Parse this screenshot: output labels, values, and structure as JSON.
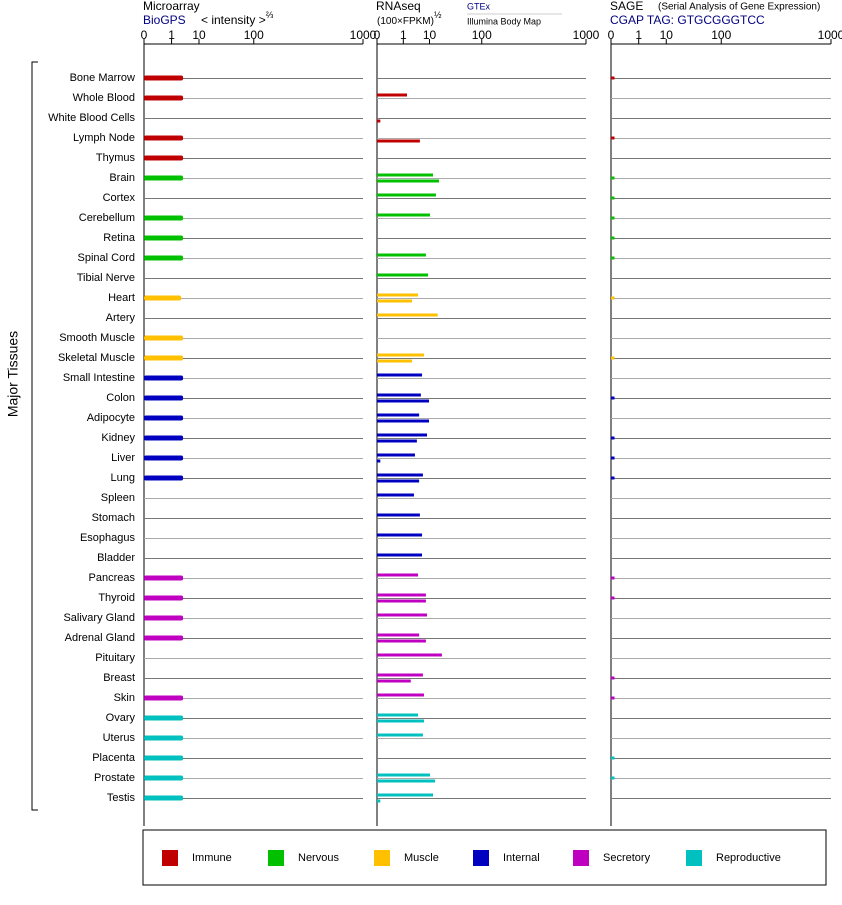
{
  "chart_data": {
    "type": "bar",
    "ylabel": "Major Tissues",
    "xlim": [
      0,
      1000
    ],
    "xticks": [
      0,
      1,
      10,
      100,
      1000
    ],
    "xscale": "power",
    "xscale_exponent": 0.3,
    "panels": [
      {
        "key": "microarray",
        "title": "Microarray",
        "source": "BioGPS",
        "unit": "< intensity >",
        "unit_exponent": "⅔"
      },
      {
        "key": "rnaseq",
        "title": "RNAseq",
        "unit": "(100×FPKM)",
        "unit_exponent": "½",
        "sources": [
          "GTEx",
          "Illumina Body Map"
        ]
      },
      {
        "key": "sage",
        "title": "SAGE",
        "subtitle": "(Serial Analysis of Gene Expression)",
        "source": "CGAP TAG: GTGCGGGTCC"
      }
    ],
    "groups": [
      {
        "name": "Immune",
        "color": "#c00000",
        "tissues": [
          {
            "name": "Bone Marrow",
            "microarray": 3.2,
            "gtex": null,
            "illumina": null,
            "sage": 0.001
          },
          {
            "name": "Whole Blood",
            "microarray": 3.2,
            "gtex": 1.55,
            "illumina": null,
            "sage": null
          },
          {
            "name": "White Blood Cells",
            "microarray": null,
            "gtex": null,
            "illumina": 0.001,
            "sage": null
          },
          {
            "name": "Lymph Node",
            "microarray": 3.2,
            "gtex": null,
            "illumina": 5.1,
            "sage": 0.001
          },
          {
            "name": "Thymus",
            "microarray": 3.2,
            "gtex": null,
            "illumina": null,
            "sage": null
          }
        ]
      },
      {
        "name": "Nervous",
        "color": "#00c000",
        "tissues": [
          {
            "name": "Brain",
            "microarray": 3.2,
            "gtex": 12.4,
            "illumina": 17.4,
            "sage": 0.001
          },
          {
            "name": "Cortex",
            "microarray": null,
            "gtex": 14.7,
            "illumina": null,
            "sage": 0.001
          },
          {
            "name": "Cerebellum",
            "microarray": 3.2,
            "gtex": 10.3,
            "illumina": null,
            "sage": 0.001
          },
          {
            "name": "Retina",
            "microarray": 3.2,
            "gtex": null,
            "illumina": null,
            "sage": 0.001
          },
          {
            "name": "Spinal Cord",
            "microarray": 3.2,
            "gtex": 7.9,
            "illumina": null,
            "sage": 0.001
          },
          {
            "name": "Tibial Nerve",
            "microarray": null,
            "gtex": 9.1,
            "illumina": null,
            "sage": null
          }
        ]
      },
      {
        "name": "Muscle",
        "color": "#ffc000",
        "tissues": [
          {
            "name": "Heart",
            "microarray": 2.7,
            "gtex": 4.4,
            "illumina": 2.6,
            "sage": 0.001
          },
          {
            "name": "Artery",
            "microarray": null,
            "gtex": 16.2,
            "illumina": null,
            "sage": null
          },
          {
            "name": "Smooth Muscle",
            "microarray": 3.2,
            "gtex": null,
            "illumina": null,
            "sage": null
          },
          {
            "name": "Skeletal Muscle",
            "microarray": 3.2,
            "gtex": 6.9,
            "illumina": 2.6,
            "sage": 0.001
          }
        ]
      },
      {
        "name": "Internal",
        "color": "#0000c0",
        "tissues": [
          {
            "name": "Small Intestine",
            "microarray": 3.2,
            "gtex": 6.0,
            "illumina": null,
            "sage": null
          },
          {
            "name": "Colon",
            "microarray": 3.2,
            "gtex": 5.5,
            "illumina": 9.7,
            "sage": 0.001
          },
          {
            "name": "Adipocyte",
            "microarray": 3.2,
            "gtex": 4.8,
            "illumina": 9.7,
            "sage": null
          },
          {
            "name": "Kidney",
            "microarray": 3.2,
            "gtex": 8.5,
            "illumina": 4.0,
            "sage": 0.001
          },
          {
            "name": "Liver",
            "microarray": 3.2,
            "gtex": 3.4,
            "illumina": 0.001,
            "sage": 0.001
          },
          {
            "name": "Lung",
            "microarray": 3.2,
            "gtex": 6.4,
            "illumina": 4.8,
            "sage": 0.001
          },
          {
            "name": "Spleen",
            "microarray": null,
            "gtex": 3.1,
            "illumina": null,
            "sage": null
          },
          {
            "name": "Stomach",
            "microarray": null,
            "gtex": 5.1,
            "illumina": null,
            "sage": null
          },
          {
            "name": "Esophagus",
            "microarray": null,
            "gtex": 6.0,
            "illumina": null,
            "sage": null
          },
          {
            "name": "Bladder",
            "microarray": null,
            "gtex": 6.0,
            "illumina": null,
            "sage": null
          }
        ]
      },
      {
        "name": "Secretory",
        "color": "#c000c0",
        "tissues": [
          {
            "name": "Pancreas",
            "microarray": 3.2,
            "gtex": 4.4,
            "illumina": null,
            "sage": 0.001
          },
          {
            "name": "Thyroid",
            "microarray": 3.2,
            "gtex": 7.9,
            "illumina": 7.9,
            "sage": 0.001
          },
          {
            "name": "Salivary Gland",
            "microarray": 3.2,
            "gtex": 8.5,
            "illumina": null,
            "sage": null
          },
          {
            "name": "Adrenal Gland",
            "microarray": 3.2,
            "gtex": 4.8,
            "illumina": 7.9,
            "sage": null
          },
          {
            "name": "Pituitary",
            "microarray": null,
            "gtex": 20.3,
            "illumina": null,
            "sage": null
          },
          {
            "name": "Breast",
            "microarray": null,
            "gtex": 6.4,
            "illumina": 2.3,
            "sage": 0.001
          },
          {
            "name": "Skin",
            "microarray": 3.2,
            "gtex": 6.9,
            "illumina": null,
            "sage": 0.001
          }
        ]
      },
      {
        "name": "Reproductive",
        "color": "#00c0c0",
        "tissues": [
          {
            "name": "Ovary",
            "microarray": 3.2,
            "gtex": 4.4,
            "illumina": 6.9,
            "sage": null
          },
          {
            "name": "Uterus",
            "microarray": 3.2,
            "gtex": 6.4,
            "illumina": null,
            "sage": null
          },
          {
            "name": "Placenta",
            "microarray": 3.2,
            "gtex": null,
            "illumina": null,
            "sage": 0.001
          },
          {
            "name": "Prostate",
            "microarray": 3.2,
            "gtex": 10.3,
            "illumina": 14.0,
            "sage": 0.001
          },
          {
            "name": "Testis",
            "microarray": 3.2,
            "gtex": 12.4,
            "illumina": 0.001,
            "sage": null
          }
        ]
      }
    ]
  }
}
